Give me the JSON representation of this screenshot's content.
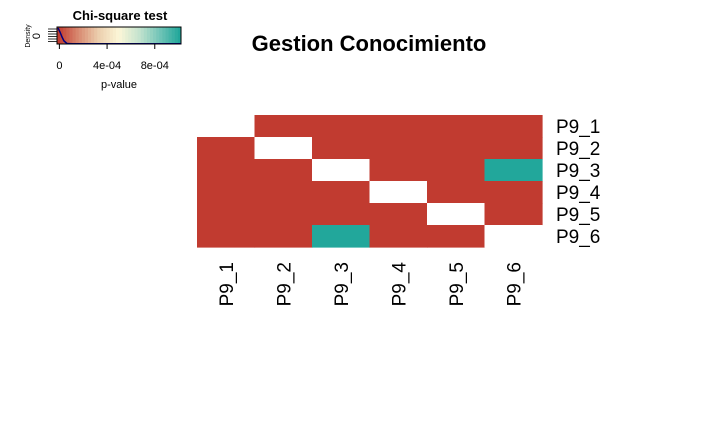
{
  "chart_data": {
    "type": "heatmap",
    "title": "Gestion Conocimiento",
    "rows": [
      "P9_1",
      "P9_2",
      "P9_3",
      "P9_4",
      "P9_5",
      "P9_6"
    ],
    "cols": [
      "P9_1",
      "P9_2",
      "P9_3",
      "P9_4",
      "P9_5",
      "P9_6"
    ],
    "cells": [
      [
        null,
        0,
        0,
        0,
        0,
        0
      ],
      [
        0,
        null,
        0,
        0,
        0,
        0
      ],
      [
        0,
        0,
        null,
        0,
        0,
        0.001
      ],
      [
        0,
        0,
        0,
        null,
        0,
        0
      ],
      [
        0,
        0,
        0,
        0,
        null,
        0
      ],
      [
        0,
        0,
        0.001,
        0,
        0,
        null
      ]
    ],
    "colors": {
      "low": "#c13b30",
      "high": "#22a79b",
      "missing": "#ffffff",
      "gradient": [
        "#c13b30",
        "#d98b72",
        "#eccfae",
        "#fcf7d8",
        "#c4e3ce",
        "#73c5b8",
        "#22a79b"
      ],
      "density_line": "#00007f"
    },
    "color_key": {
      "title": "Chi-square test",
      "xlabel": "p-value",
      "ylabel": "Density",
      "y_tick": "0",
      "ticks": [
        {
          "label": "0",
          "value": 0
        },
        {
          "label": "4e-04",
          "value": 0.0004
        },
        {
          "label": "8e-04",
          "value": 0.0008
        }
      ],
      "range": [
        -2e-05,
        0.00102
      ]
    }
  }
}
